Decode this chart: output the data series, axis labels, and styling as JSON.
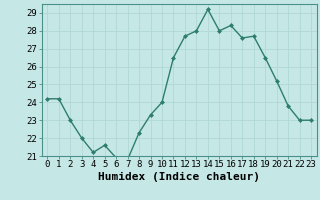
{
  "x": [
    0,
    1,
    2,
    3,
    4,
    5,
    6,
    7,
    8,
    9,
    10,
    11,
    12,
    13,
    14,
    15,
    16,
    17,
    18,
    19,
    20,
    21,
    22,
    23
  ],
  "y": [
    24.2,
    24.2,
    23.0,
    22.0,
    21.2,
    21.6,
    20.9,
    20.8,
    22.3,
    23.3,
    24.0,
    26.5,
    27.7,
    28.0,
    29.2,
    28.0,
    28.3,
    27.6,
    27.7,
    26.5,
    25.2,
    23.8,
    23.0,
    23.0
  ],
  "line_color": "#2e7d6e",
  "marker": "D",
  "marker_size": 2.0,
  "line_width": 1.0,
  "bg_color": "#c5e8e6",
  "grid_color": "#b0d8d4",
  "xlabel": "Humidex (Indice chaleur)",
  "ylim": [
    21,
    29.5
  ],
  "yticks": [
    21,
    22,
    23,
    24,
    25,
    26,
    27,
    28,
    29
  ],
  "xticks": [
    0,
    1,
    2,
    3,
    4,
    5,
    6,
    7,
    8,
    9,
    10,
    11,
    12,
    13,
    14,
    15,
    16,
    17,
    18,
    19,
    20,
    21,
    22,
    23
  ],
  "tick_label_size": 6.5,
  "xlabel_size": 8.0
}
